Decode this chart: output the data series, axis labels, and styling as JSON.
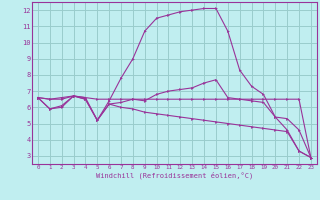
{
  "background_color": "#c0eef0",
  "line_color": "#993399",
  "grid_color": "#99cccc",
  "xlabel": "Windchill (Refroidissement éolien,°C)",
  "xlim": [
    -0.5,
    23.5
  ],
  "ylim": [
    2.5,
    12.5
  ],
  "yticks": [
    3,
    4,
    5,
    6,
    7,
    8,
    9,
    10,
    11,
    12
  ],
  "xticks": [
    0,
    1,
    2,
    3,
    4,
    5,
    6,
    7,
    8,
    9,
    10,
    11,
    12,
    13,
    14,
    15,
    16,
    17,
    18,
    19,
    20,
    21,
    22,
    23
  ],
  "series": [
    {
      "x": [
        0,
        1,
        2,
        3,
        4,
        5,
        6,
        7,
        8,
        9,
        10,
        11,
        12,
        13,
        14,
        15,
        16,
        17,
        18,
        19,
        20,
        21,
        22,
        23
      ],
      "y": [
        6.6,
        5.9,
        6.0,
        6.7,
        6.6,
        5.2,
        6.2,
        6.0,
        5.9,
        5.7,
        5.6,
        5.5,
        5.4,
        5.3,
        5.2,
        5.1,
        5.0,
        4.9,
        4.8,
        4.7,
        4.6,
        4.5,
        3.3,
        2.9
      ]
    },
    {
      "x": [
        0,
        1,
        2,
        3,
        4,
        5,
        6,
        7,
        8,
        9,
        10,
        11,
        12,
        13,
        14,
        15,
        16,
        17,
        18,
        19,
        20,
        21,
        22,
        23
      ],
      "y": [
        6.6,
        6.5,
        6.6,
        6.7,
        6.6,
        6.5,
        6.5,
        6.5,
        6.5,
        6.5,
        6.5,
        6.5,
        6.5,
        6.5,
        6.5,
        6.5,
        6.5,
        6.5,
        6.5,
        6.5,
        6.5,
        6.5,
        6.5,
        2.9
      ]
    },
    {
      "x": [
        0,
        1,
        2,
        3,
        4,
        5,
        6,
        7,
        8,
        9,
        10,
        11,
        12,
        13,
        14,
        15,
        16,
        17,
        18,
        19,
        20,
        21,
        22,
        23
      ],
      "y": [
        6.6,
        6.5,
        6.5,
        6.7,
        6.5,
        5.2,
        6.4,
        7.8,
        9.0,
        10.7,
        11.5,
        11.7,
        11.9,
        12.0,
        12.1,
        12.1,
        10.7,
        8.3,
        7.3,
        6.8,
        5.4,
        4.6,
        3.3,
        2.9
      ]
    },
    {
      "x": [
        0,
        1,
        2,
        3,
        4,
        5,
        6,
        7,
        8,
        9,
        10,
        11,
        12,
        13,
        14,
        15,
        16,
        17,
        18,
        19,
        20,
        21,
        22,
        23
      ],
      "y": [
        6.6,
        5.9,
        6.1,
        6.7,
        6.5,
        5.2,
        6.2,
        6.3,
        6.5,
        6.4,
        6.8,
        7.0,
        7.1,
        7.2,
        7.5,
        7.7,
        6.6,
        6.5,
        6.4,
        6.3,
        5.4,
        5.3,
        4.6,
        2.9
      ]
    }
  ]
}
